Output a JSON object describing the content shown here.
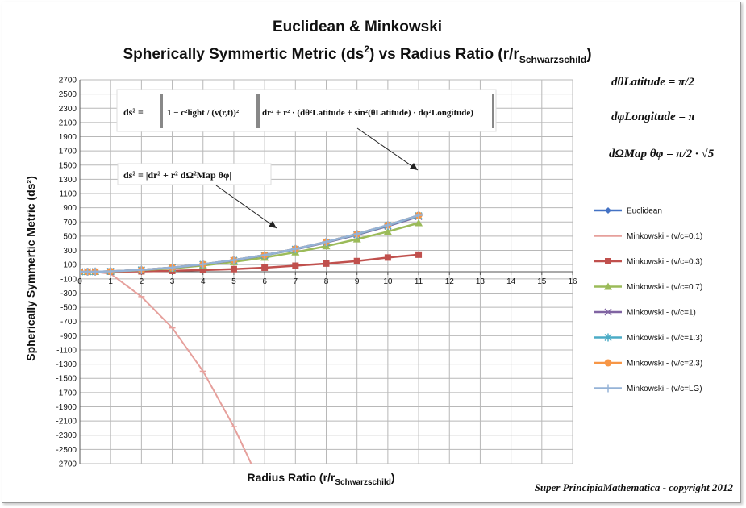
{
  "chart_data": {
    "type": "line",
    "title_line1": "Euclidean & Minkowski",
    "title_line2_main": "Spherically Symmertic Metric (ds",
    "title_line2_sup": "2",
    "title_line2_rest": ") vs Radius Ratio (r/r",
    "title_line2_sub": "Schwarzschild",
    "title_line2_end": ")",
    "xlabel_main": "Radius Ratio (r/r",
    "xlabel_sub": "Schwarzschild",
    "xlabel_end": ")",
    "ylabel": "Spherically Symmertic Metric (ds²)",
    "xlim": [
      0,
      16
    ],
    "ylim": [
      -2700,
      2700
    ],
    "xticks": [
      0,
      1,
      2,
      3,
      4,
      5,
      6,
      7,
      8,
      9,
      10,
      11,
      12,
      13,
      14,
      15,
      16
    ],
    "yticks": [
      2700,
      2500,
      2300,
      2100,
      1900,
      1700,
      1500,
      1300,
      1100,
      900,
      700,
      500,
      300,
      100,
      -100,
      -300,
      -500,
      -700,
      -900,
      -1100,
      -1300,
      -1500,
      -1700,
      -1900,
      -2100,
      -2300,
      -2500,
      -2700
    ],
    "grid": true,
    "legend_position": "right",
    "x": [
      0,
      0.25,
      0.5,
      1,
      2,
      3,
      4,
      5,
      6,
      7,
      8,
      9,
      10,
      11
    ],
    "series": [
      {
        "name": "Euclidean",
        "color": "#4472c4",
        "marker": "diamond",
        "values": [
          0,
          0.4,
          1.5,
          6,
          26,
          59,
          105,
          164,
          236,
          322,
          420,
          532,
          656,
          794
        ]
      },
      {
        "name": "Minkowski - (v/c=0.1)",
        "color": "#e6a09c",
        "marker": "dash",
        "values": [
          0,
          0,
          -2,
          -30,
          -350,
          -790,
          -1400,
          -2180,
          -3100,
          null,
          null,
          null,
          null,
          null
        ]
      },
      {
        "name": "Minkowski - (v/c=0.3)",
        "color": "#c0504d",
        "marker": "square",
        "values": [
          0,
          0.1,
          0.3,
          1.5,
          6,
          12,
          24,
          37,
          57,
          85,
          115,
          150,
          200,
          240
        ]
      },
      {
        "name": "Minkowski - (v/c=0.7)",
        "color": "#9bbb59",
        "marker": "triangle",
        "values": [
          0,
          0.3,
          1.2,
          5,
          21,
          48,
          88,
          138,
          200,
          275,
          360,
          458,
          565,
          686
        ]
      },
      {
        "name": "Minkowski - (v/c=1)",
        "color": "#8064a2",
        "marker": "x",
        "values": [
          0,
          0.4,
          1.4,
          6,
          25,
          57,
          102,
          160,
          230,
          314,
          411,
          520,
          642,
          777
        ]
      },
      {
        "name": "Minkowski - (v/c=1.3)",
        "color": "#4bacc6",
        "marker": "star",
        "values": [
          0,
          0.4,
          1.5,
          6,
          26,
          58,
          104,
          162,
          233,
          318,
          416,
          526,
          650,
          788
        ]
      },
      {
        "name": "Minkowski - (v/c=2.3)",
        "color": "#f79646",
        "marker": "circle",
        "values": [
          0,
          0.4,
          1.5,
          6,
          26,
          59,
          105,
          164,
          236,
          322,
          420,
          532,
          656,
          794
        ]
      },
      {
        "name": "Minkowski - (v/c=LG)",
        "color": "#95b3d7",
        "marker": "plus",
        "values": [
          0,
          0.4,
          1.5,
          6,
          26,
          59,
          105,
          164,
          236,
          322,
          420,
          532,
          656,
          794
        ]
      }
    ]
  },
  "equations": {
    "main_lhs": "ds² =",
    "main_factor": "1 − c²light / (v(r,t))²",
    "main_rest": "dr² + r² · (dθ²Latitude + sin²(θLatitude) · dφ²Longitude)",
    "simple": "ds² = |dr² + r² dΩ²Map θφ|",
    "theta": "dθLatitude = π/2",
    "phi": "dφLongitude = π",
    "omega": "dΩMap θφ = π/2 · √5"
  },
  "copyright": "Super PrincipiaMathematica - copyright 2012"
}
